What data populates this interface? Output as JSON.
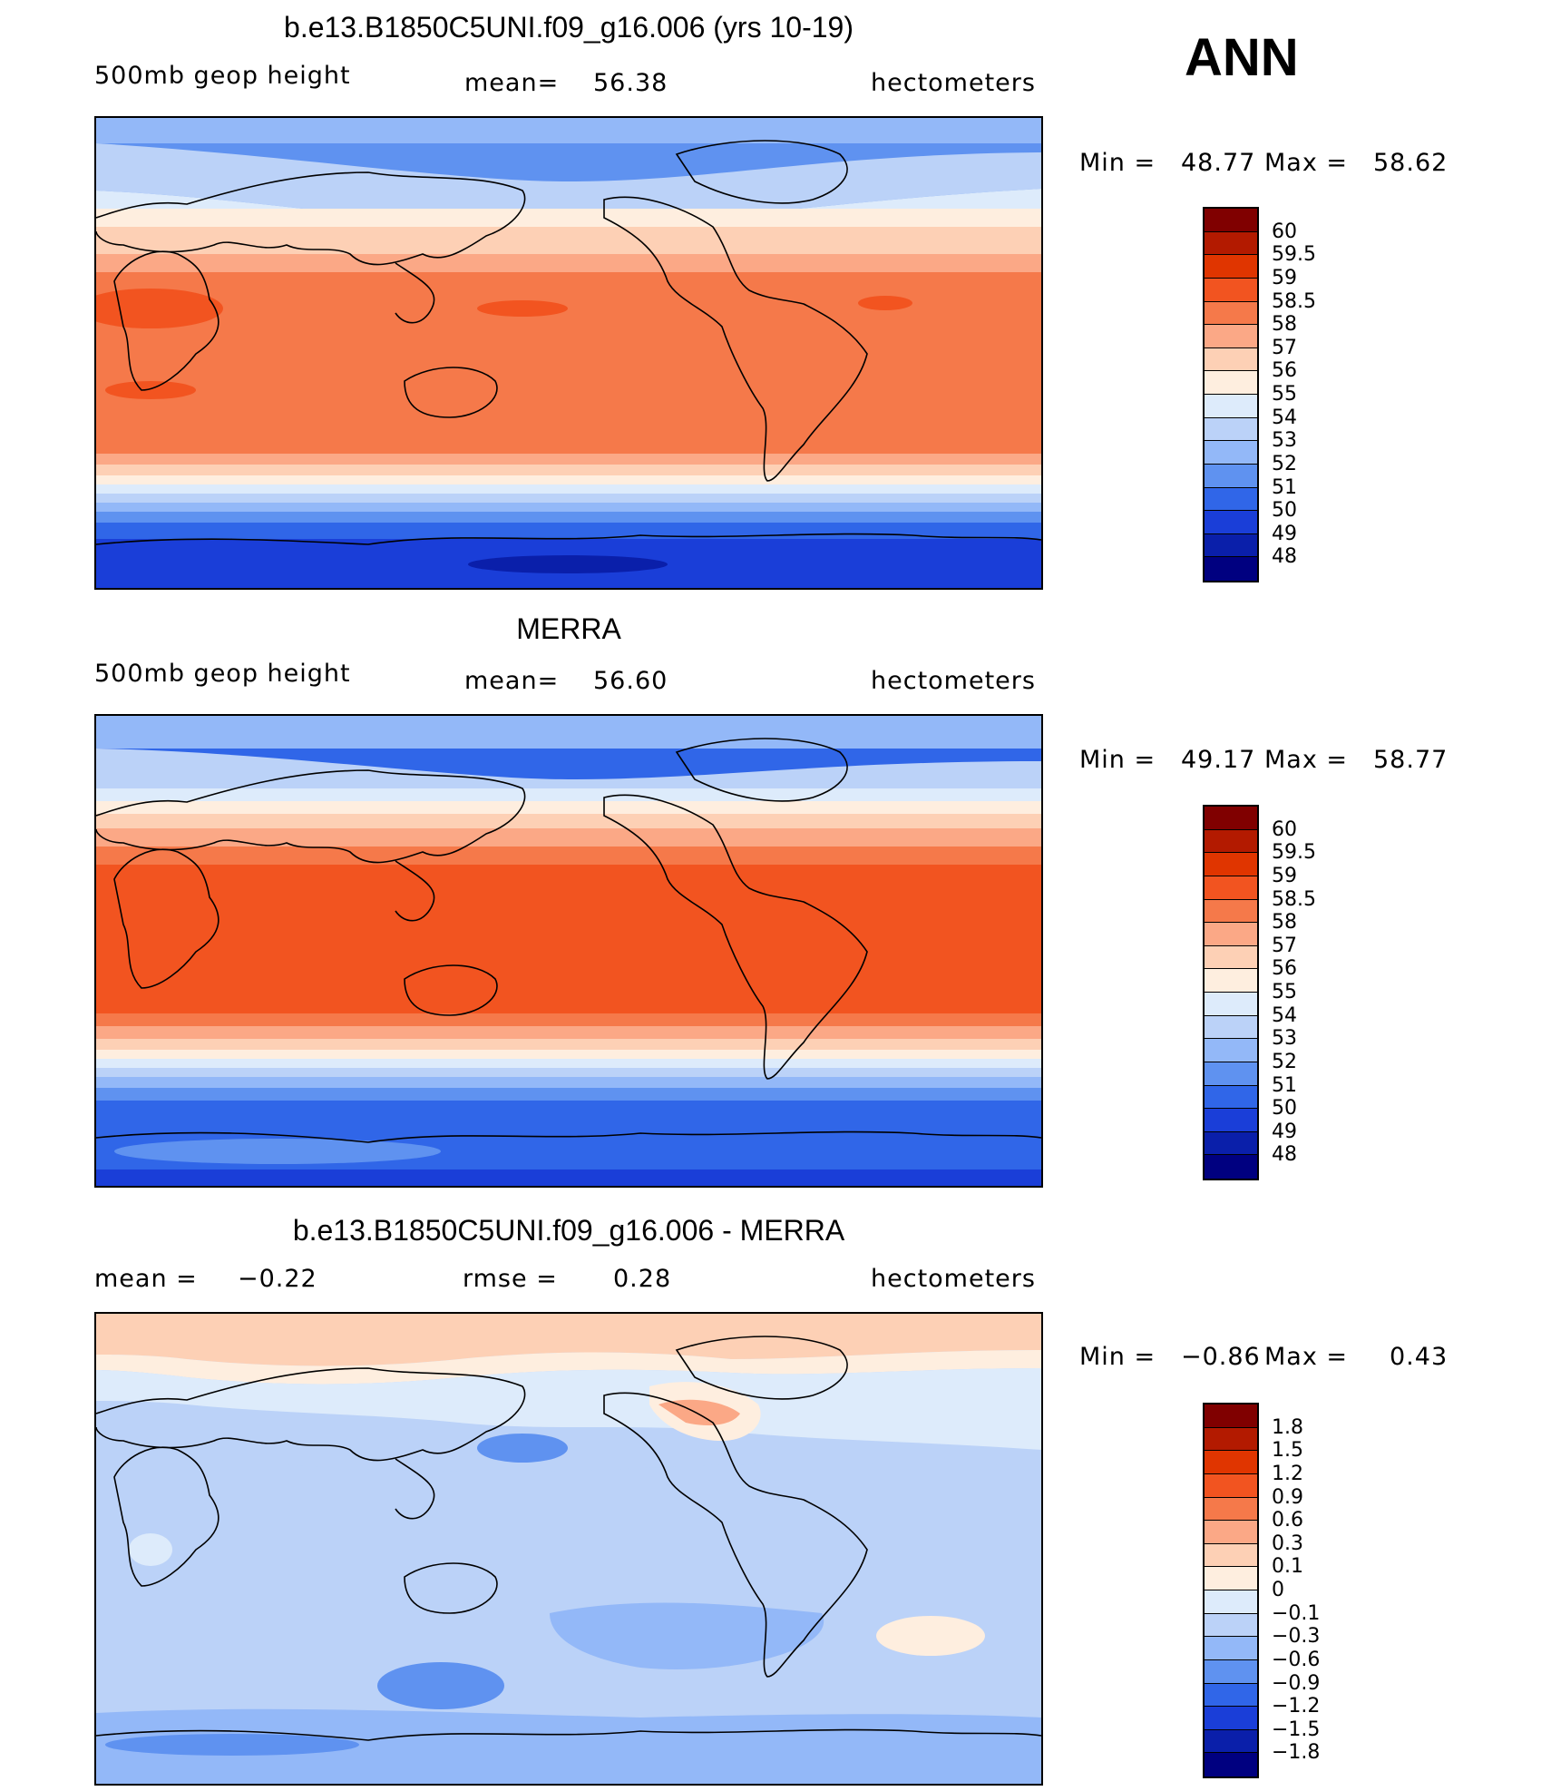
{
  "season": "ANN",
  "units": "hectometers",
  "panels": [
    {
      "title": "b.e13.B1850C5UNI.f09_g16.006 (yrs 10-19)",
      "variable": "500mb  geop  height",
      "stat_label": "mean=",
      "stat_value": "56.38",
      "min_label": "Min  =",
      "min_value": "48.77",
      "max_label": "Max  =",
      "max_value": "58.62",
      "colorbar_labels": [
        "60",
        "59.5",
        "59",
        "58.5",
        "58",
        "57",
        "56",
        "55",
        "54",
        "53",
        "52",
        "51",
        "50",
        "49",
        "48"
      ],
      "colorbar_colors": [
        "#800000",
        "#B31A00",
        "#E03500",
        "#F25420",
        "#F5794A",
        "#FBA886",
        "#FDD0B5",
        "#FEEEDF",
        "#DDEBFB",
        "#BBD2F8",
        "#93B8F8",
        "#5F92F0",
        "#3066E8",
        "#1A3ED8",
        "#0A1FAA",
        "#000080"
      ]
    },
    {
      "title": "MERRA",
      "variable": "500mb  geop  height",
      "stat_label": "mean=",
      "stat_value": "56.60",
      "min_label": "Min  =",
      "min_value": "49.17",
      "max_label": "Max  =",
      "max_value": "58.77",
      "colorbar_labels": [
        "60",
        "59.5",
        "59",
        "58.5",
        "58",
        "57",
        "56",
        "55",
        "54",
        "53",
        "52",
        "51",
        "50",
        "49",
        "48"
      ],
      "colorbar_colors": [
        "#800000",
        "#B31A00",
        "#E03500",
        "#F25420",
        "#F5794A",
        "#FBA886",
        "#FDD0B5",
        "#FEEEDF",
        "#DDEBFB",
        "#BBD2F8",
        "#93B8F8",
        "#5F92F0",
        "#3066E8",
        "#1A3ED8",
        "#0A1FAA",
        "#000080"
      ]
    },
    {
      "title": "b.e13.B1850C5UNI.f09_g16.006 - MERRA",
      "stat_label": "mean  =",
      "stat_value": "−0.22",
      "stat2_label": "rmse  =",
      "stat2_value": "0.28",
      "min_label": "Min  =",
      "min_value": "−0.86",
      "max_label": "Max  =",
      "max_value": "0.43",
      "colorbar_labels": [
        "1.8",
        "1.5",
        "1.2",
        "0.9",
        "0.6",
        "0.3",
        "0.1",
        "0",
        "−0.1",
        "−0.3",
        "−0.6",
        "−0.9",
        "−1.2",
        "−1.5",
        "−1.8"
      ],
      "colorbar_colors": [
        "#800000",
        "#B31A00",
        "#E03500",
        "#F25420",
        "#F5794A",
        "#FBA886",
        "#FDD0B5",
        "#FEEEDF",
        "#DDEBFB",
        "#BBD2F8",
        "#93B8F8",
        "#5F92F0",
        "#3066E8",
        "#1A3ED8",
        "#0A1FAA",
        "#000080"
      ]
    }
  ]
}
